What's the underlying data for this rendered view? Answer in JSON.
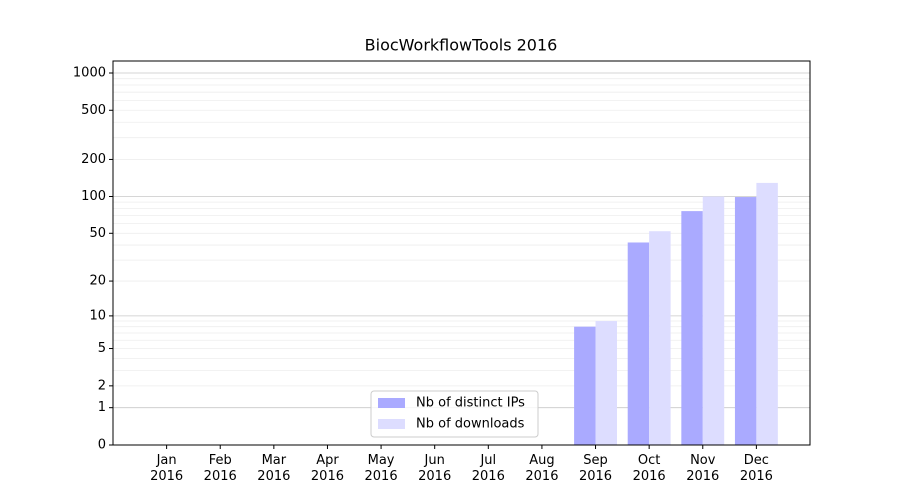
{
  "chart_data": {
    "type": "bar",
    "title": "BiocWorkflowTools 2016",
    "categories": [
      "Jan\n2016",
      "Feb\n2016",
      "Mar\n2016",
      "Apr\n2016",
      "May\n2016",
      "Jun\n2016",
      "Jul\n2016",
      "Aug\n2016",
      "Sep\n2016",
      "Oct\n2016",
      "Nov\n2016",
      "Dec\n2016"
    ],
    "series": [
      {
        "name": "Nb of distinct IPs",
        "color": "#aaaaff",
        "values": [
          0,
          0,
          0,
          0,
          0,
          0,
          0,
          0,
          8,
          42,
          76,
          99
        ]
      },
      {
        "name": "Nb of downloads",
        "color": "#ddddff",
        "values": [
          0,
          0,
          0,
          0,
          0,
          0,
          0,
          0,
          9,
          52,
          100,
          129
        ]
      }
    ],
    "yscale": "log1p",
    "ylim": [
      0,
      1250
    ],
    "yticks": [
      0,
      1,
      2,
      5,
      10,
      20,
      50,
      100,
      200,
      500,
      1000
    ],
    "major_grid": [
      1,
      10,
      100,
      1000
    ],
    "minor_grid": [
      2,
      3,
      4,
      5,
      6,
      7,
      8,
      9,
      20,
      30,
      40,
      50,
      60,
      70,
      80,
      90,
      200,
      300,
      400,
      500,
      600,
      700,
      800,
      900
    ],
    "legend": "lower center"
  }
}
